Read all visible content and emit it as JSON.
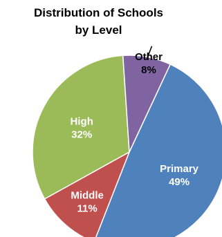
{
  "chart_data": {
    "type": "pie",
    "title_line1": "Distribution of Schools",
    "title_line2": "by Level",
    "start_angle_deg": 25,
    "direction": "clockwise",
    "slices": [
      {
        "label": "Primary",
        "value": 49,
        "value_text": "49%",
        "color": "#4f81bd",
        "label_color": "#ffffff"
      },
      {
        "label": "Middle",
        "value": 11,
        "value_text": "11%",
        "color": "#c0504d",
        "label_color": "#ffffff"
      },
      {
        "label": "High",
        "value": 32,
        "value_text": "32%",
        "color": "#9bbb59",
        "label_color": "#ffffff"
      },
      {
        "label": "Other",
        "value": 8,
        "value_text": "8%",
        "color": "#8064a2",
        "label_color": "#000000",
        "label_outside": true
      }
    ]
  }
}
